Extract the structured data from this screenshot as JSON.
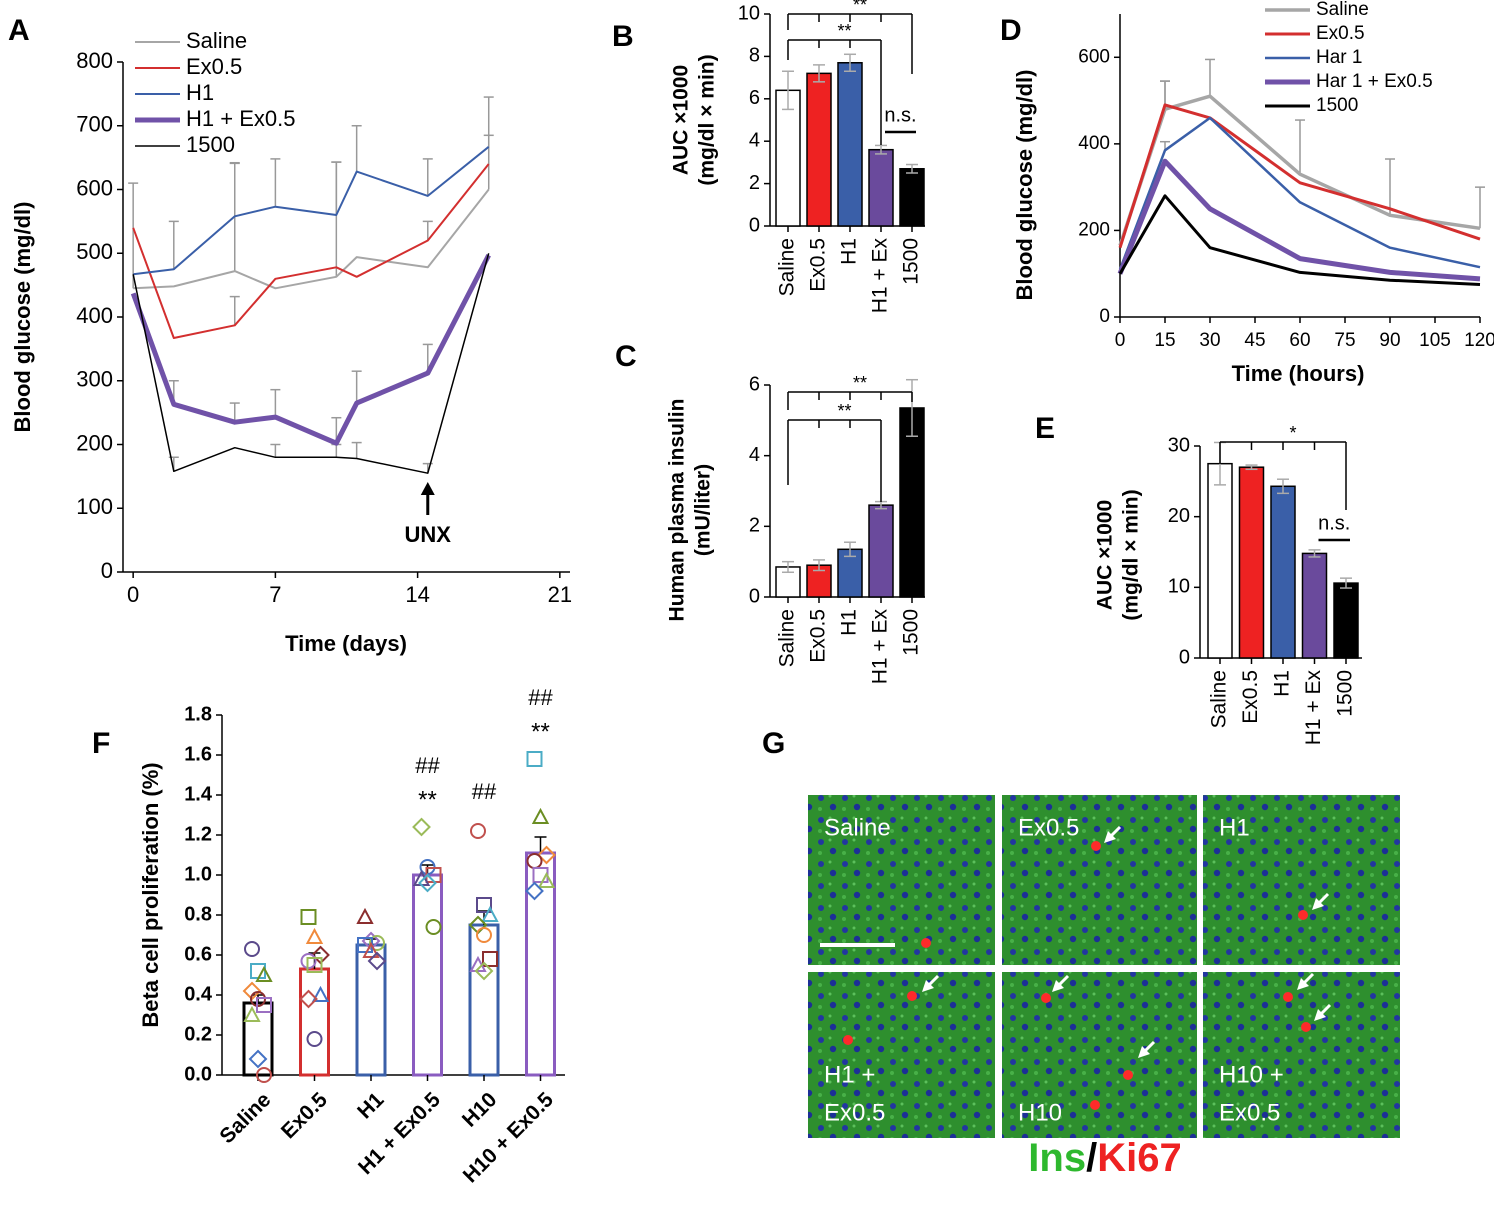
{
  "chart_data": [
    {
      "panel": "A",
      "type": "line",
      "x_label": "Time (days)",
      "y_label": "Blood glucose (mg/dl)",
      "x": [
        0,
        2,
        5,
        7,
        10,
        11,
        14.5,
        17.5
      ],
      "xlim": [
        -0.5,
        21.5
      ],
      "xticks": [
        0,
        7,
        14,
        21
      ],
      "ylim": [
        0,
        800
      ],
      "yticks": [
        0,
        100,
        200,
        300,
        400,
        500,
        600,
        700,
        800
      ],
      "annotation": "UNX",
      "series": [
        {
          "name": "Saline",
          "color": "#a6a6a6",
          "values": [
            445,
            448,
            472,
            445,
            463,
            494,
            478,
            600
          ],
          "errors": [
            165,
            null,
            170,
            null,
            180,
            null,
            null,
            85
          ]
        },
        {
          "name": "Ex0.5",
          "color": "#d32f2f",
          "values": [
            540,
            367,
            387,
            460,
            478,
            463,
            520,
            640
          ],
          "errors": [
            null,
            null,
            45,
            null,
            null,
            null,
            30,
            null
          ]
        },
        {
          "name": "H1",
          "color": "#3a5fa8",
          "values": [
            467,
            475,
            558,
            573,
            560,
            628,
            590,
            667
          ],
          "errors": [
            null,
            75,
            83,
            75,
            83,
            72,
            58,
            78
          ]
        },
        {
          "name": "H1 + Ex0.5",
          "color": "#7052a8",
          "values": [
            437,
            263,
            235,
            243,
            202,
            265,
            312,
            497
          ],
          "errors": [
            null,
            37,
            30,
            43,
            40,
            50,
            45,
            null
          ]
        },
        {
          "name": "1500",
          "color": "#000000",
          "values": [
            467,
            158,
            195,
            180,
            180,
            178,
            155,
            500
          ],
          "errors": [
            null,
            22,
            null,
            20,
            20,
            25,
            15,
            null
          ]
        }
      ]
    },
    {
      "panel": "B",
      "type": "bar",
      "y_label": [
        "AUC ×1000",
        "(mg/dl × min)"
      ],
      "categories": [
        "Saline",
        "Ex0.5",
        "H1",
        "H1 + Ex",
        "1500"
      ],
      "values": [
        6.4,
        7.2,
        7.7,
        3.6,
        2.7
      ],
      "errors": [
        0.9,
        0.4,
        0.4,
        0.2,
        0.2
      ],
      "colors": [
        "#ffffff",
        "#ee2222",
        "#3a5fa8",
        "#6a4a9c",
        "#000000"
      ],
      "ylim": [
        0,
        10
      ],
      "yticks": [
        0,
        2,
        4,
        6,
        8,
        10
      ],
      "annotations": [
        "**",
        "**",
        "n.s."
      ]
    },
    {
      "panel": "C",
      "type": "bar",
      "y_label": [
        "Human plasma insulin",
        "(mU/liter)"
      ],
      "categories": [
        "Saline",
        "Ex0.5",
        "H1",
        "H1 + Ex",
        "1500"
      ],
      "values": [
        0.85,
        0.9,
        1.35,
        2.6,
        5.35
      ],
      "errors": [
        0.15,
        0.15,
        0.2,
        0.1,
        0.8
      ],
      "colors": [
        "#ffffff",
        "#ee2222",
        "#3a5fa8",
        "#6a4a9c",
        "#000000"
      ],
      "ylim": [
        0,
        6
      ],
      "yticks": [
        0,
        2,
        4,
        6
      ],
      "annotations": [
        "**",
        "**"
      ]
    },
    {
      "panel": "D",
      "type": "line",
      "x_label": "Time (hours)",
      "y_label": "Blood glucose (mg/dl)",
      "x": [
        0,
        15,
        30,
        60,
        90,
        120
      ],
      "xlim": [
        0,
        120
      ],
      "xticks": [
        0,
        15,
        30,
        45,
        60,
        75,
        90,
        105,
        120
      ],
      "ylim": [
        0,
        700
      ],
      "yticks": [
        0,
        200,
        400,
        600
      ],
      "series": [
        {
          "name": "Saline",
          "color": "#a6a6a6",
          "values": [
            165,
            480,
            510,
            330,
            235,
            205
          ],
          "errors": [
            null,
            65,
            85,
            125,
            130,
            95
          ]
        },
        {
          "name": "Ex0.5",
          "color": "#d32f2f",
          "values": [
            160,
            490,
            460,
            310,
            250,
            180
          ],
          "errors": [
            null,
            55,
            null,
            null,
            null,
            null
          ]
        },
        {
          "name": "Har 1",
          "color": "#3a5fa8",
          "values": [
            110,
            385,
            460,
            265,
            160,
            115
          ],
          "errors": [
            null,
            20,
            null,
            null,
            null,
            null
          ]
        },
        {
          "name": "Har 1 + Ex0.5",
          "color": "#7052a8",
          "values": [
            100,
            360,
            250,
            135,
            103,
            88
          ]
        },
        {
          "name": "1500",
          "color": "#000000",
          "values": [
            100,
            280,
            160,
            103,
            85,
            75
          ]
        }
      ]
    },
    {
      "panel": "E",
      "type": "bar",
      "y_label": [
        "AUC ×1000",
        "(mg/dl × min)"
      ],
      "categories": [
        "Saline",
        "Ex0.5",
        "H1",
        "H1 + Ex",
        "1500"
      ],
      "values": [
        27.5,
        27,
        24.3,
        14.8,
        10.6
      ],
      "errors": [
        3,
        0.3,
        1,
        0.5,
        0.7
      ],
      "colors": [
        "#ffffff",
        "#ee2222",
        "#3a5fa8",
        "#6a4a9c",
        "#000000"
      ],
      "ylim": [
        0,
        30
      ],
      "yticks": [
        0,
        10,
        20,
        30
      ],
      "annotations": [
        "*",
        "n.s."
      ]
    },
    {
      "panel": "F",
      "type": "bar",
      "bar_style": "outline",
      "y_label": "Beta cell proliferation (%)",
      "categories": [
        "Saline",
        "Ex0.5",
        "H1",
        "H1 + Ex0.5",
        "H10",
        "H10 + Ex0.5"
      ],
      "values": [
        0.36,
        0.53,
        0.65,
        1.0,
        0.75,
        1.11
      ],
      "errors": [
        0.04,
        0.08,
        0.03,
        0.05,
        0.07,
        0.08
      ],
      "colors": [
        "#000000",
        "#d32f2f",
        "#3a5fa8",
        "#8a5cc0",
        "#3a5fa8",
        "#8a5cc0"
      ],
      "ylim": [
        0,
        1.8
      ],
      "yticks": [
        {
          "value": 0,
          "label": "0.0"
        },
        0.2,
        0.4,
        0.6,
        0.8,
        {
          "value": 1,
          "label": "1.0"
        },
        1.2,
        1.4,
        1.6,
        1.8
      ],
      "points": [
        [
          0.63,
          0.52,
          0.5,
          0.42,
          0.38,
          0.35,
          0.3,
          0.08,
          0.0
        ],
        [
          0.79,
          0.69,
          0.6,
          0.57,
          0.55,
          0.4,
          0.38,
          0.18
        ],
        [
          0.79,
          0.67,
          0.66,
          0.65,
          0.62,
          0.57
        ],
        [
          1.24,
          1.04,
          1.0,
          0.98,
          0.96,
          0.74
        ],
        [
          1.22,
          0.85,
          0.8,
          0.75,
          0.7,
          0.58,
          0.55,
          0.52
        ],
        [
          1.58,
          1.29,
          1.1,
          1.07,
          1.0,
          0.97,
          0.92
        ]
      ],
      "significance": [
        null,
        null,
        null,
        "**",
        null,
        "**"
      ],
      "significance_vs_h": [
        null,
        null,
        null,
        "##",
        "##",
        "##"
      ]
    }
  ],
  "micrographs": {
    "panel": "G",
    "tiles": [
      [
        "Saline"
      ],
      [
        "Ex0.5"
      ],
      [
        "H1"
      ],
      [
        "H1 +",
        "Ex0.5"
      ],
      [
        "H10"
      ],
      [
        "H10 +",
        "Ex0.5"
      ]
    ],
    "caption": [
      "Ins",
      "/",
      "Ki67"
    ]
  }
}
